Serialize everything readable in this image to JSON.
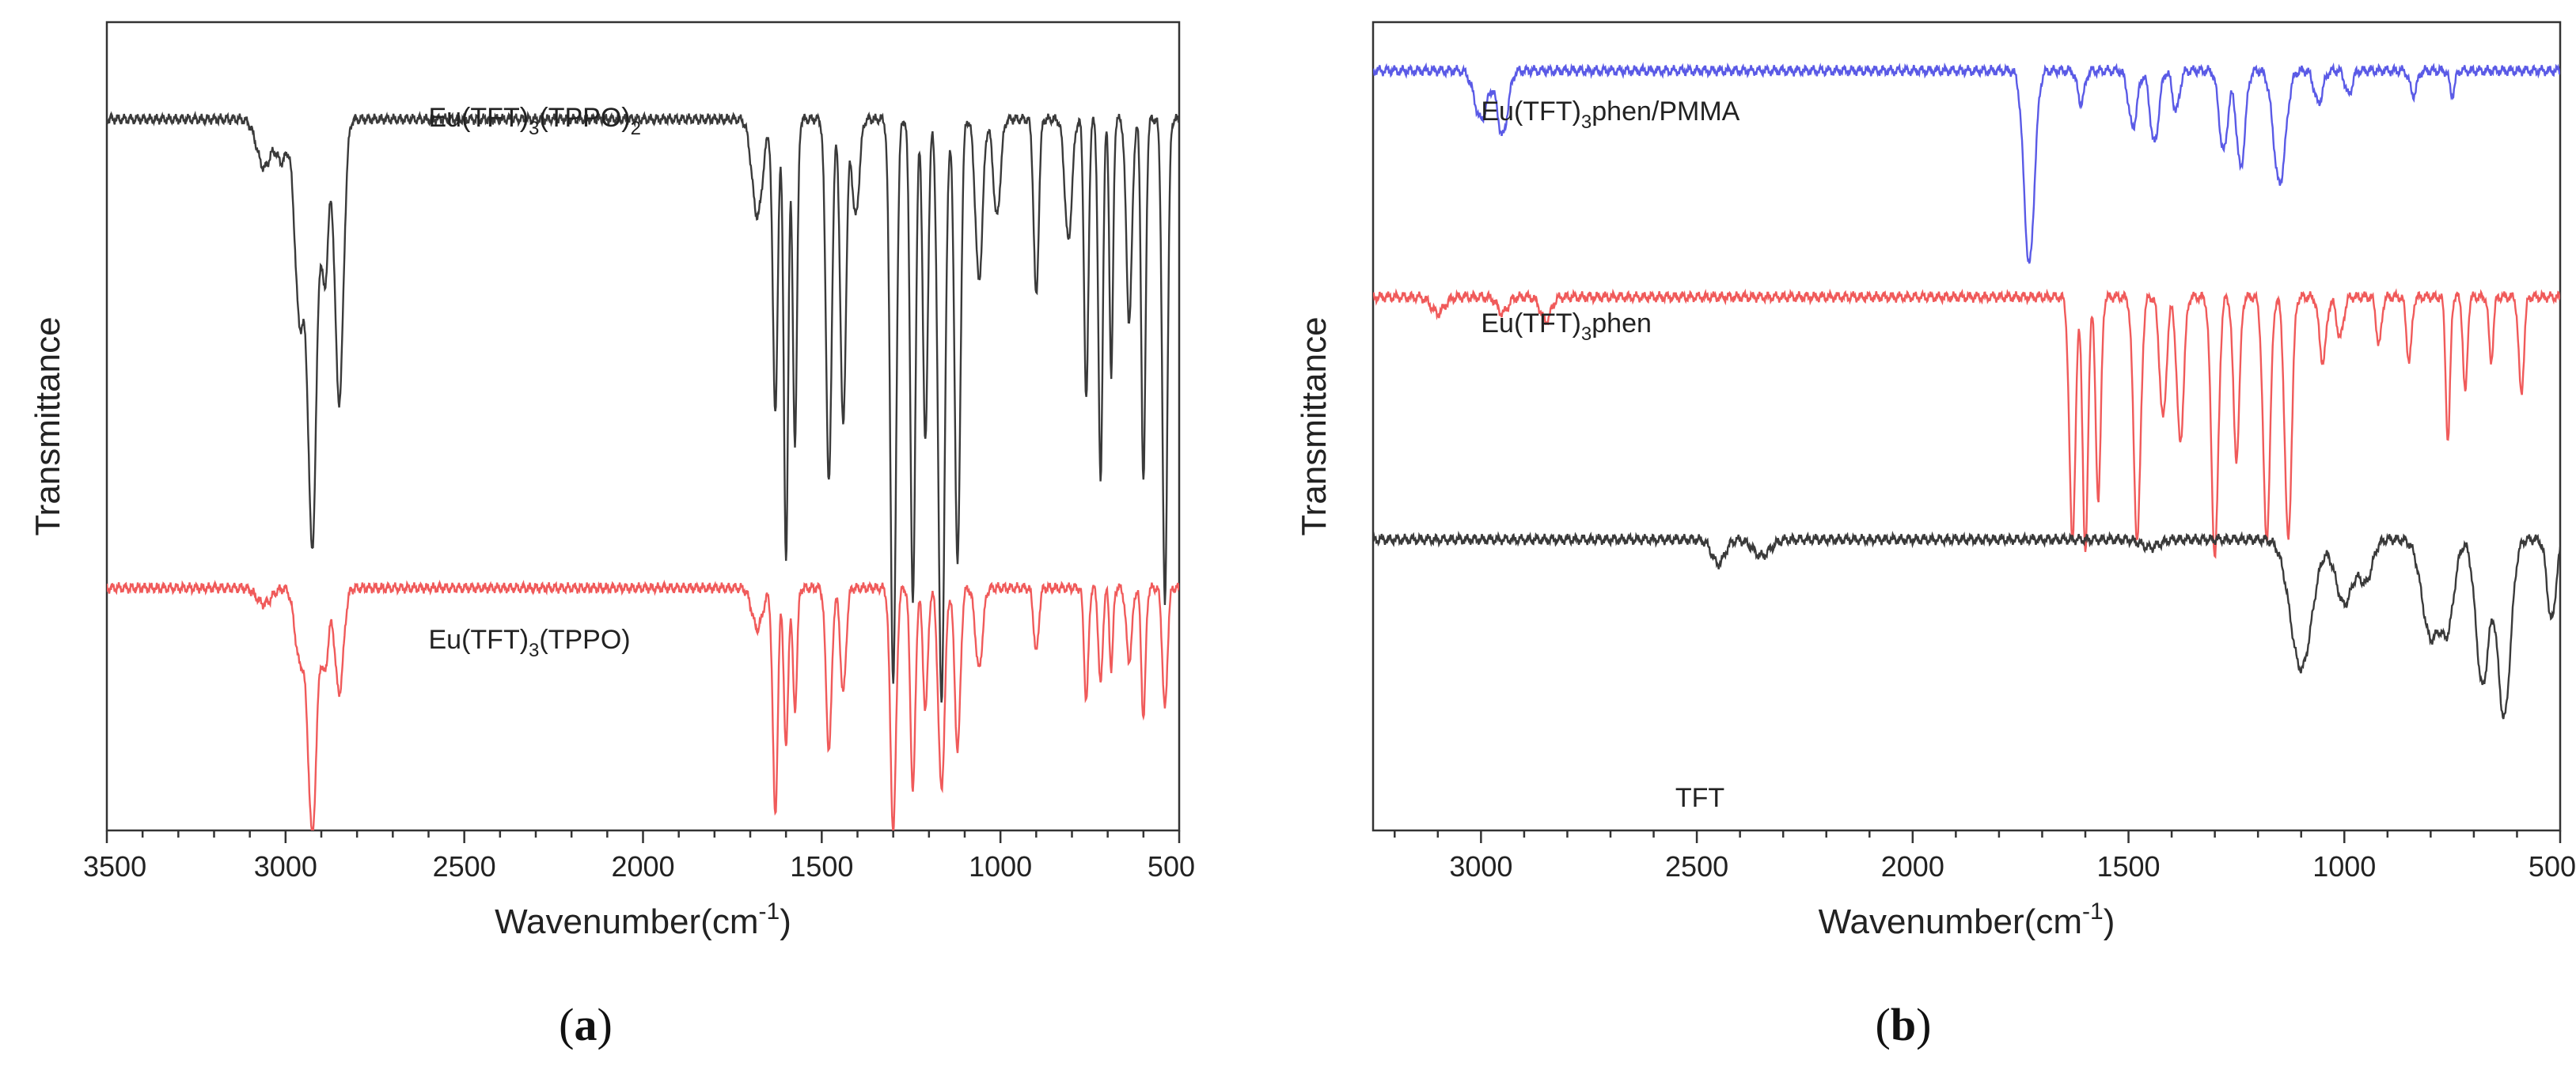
{
  "chart_data": [
    {
      "type": "line",
      "subfigure_label": "a",
      "xlabel": "Wavenumber",
      "xlabel_unit": "(cm",
      "xlabel_sup": "-1",
      "xlabel_close": ")",
      "ylabel": "Transmittance",
      "xlim": [
        3500,
        500
      ],
      "ylim": [
        0,
        1
      ],
      "x_reversed": true,
      "y_tick_labels": false,
      "xticks": [
        3500,
        3000,
        2500,
        2000,
        1500,
        1000,
        500
      ],
      "xtick_labels": [
        "3500",
        "3000",
        "2500",
        "2000",
        "1500",
        "1000",
        "500"
      ],
      "grid": false,
      "series": [
        {
          "name_base": "Eu(TFT)",
          "name_sub1": "3",
          "name_mid": "(TPPO)",
          "name_sub2": "2",
          "color": "#3a3a3a",
          "baseline": 0.88,
          "peaks": [
            [
              3060,
              0.06,
              20
            ],
            [
              3010,
              0.05,
              15
            ],
            [
              2960,
              0.25,
              14
            ],
            [
              2925,
              0.52,
              12
            ],
            [
              2890,
              0.2,
              10
            ],
            [
              2850,
              0.35,
              12
            ],
            [
              1680,
              0.12,
              15
            ],
            [
              1630,
              0.36,
              7
            ],
            [
              1600,
              0.55,
              6
            ],
            [
              1575,
              0.4,
              6
            ],
            [
              1480,
              0.45,
              8
            ],
            [
              1440,
              0.38,
              8
            ],
            [
              1405,
              0.12,
              10
            ],
            [
              1300,
              0.7,
              8
            ],
            [
              1245,
              0.6,
              7
            ],
            [
              1210,
              0.4,
              7
            ],
            [
              1165,
              0.72,
              9
            ],
            [
              1120,
              0.55,
              8
            ],
            [
              1060,
              0.2,
              10
            ],
            [
              1010,
              0.12,
              10
            ],
            [
              900,
              0.22,
              7
            ],
            [
              810,
              0.15,
              10
            ],
            [
              760,
              0.35,
              6
            ],
            [
              720,
              0.45,
              6
            ],
            [
              690,
              0.32,
              5
            ],
            [
              640,
              0.25,
              8
            ],
            [
              600,
              0.45,
              6
            ],
            [
              540,
              0.6,
              7
            ]
          ]
        },
        {
          "name_base": "Eu(TFT)",
          "name_sub1": "3",
          "name_mid": "(TPPO)",
          "name_sub2": "",
          "color": "#f05a5a",
          "baseline": 0.3,
          "peaks": [
            [
              3060,
              0.02,
              20
            ],
            [
              2960,
              0.09,
              14
            ],
            [
              2925,
              0.3,
              12
            ],
            [
              2890,
              0.1,
              10
            ],
            [
              2850,
              0.13,
              12
            ],
            [
              1680,
              0.05,
              15
            ],
            [
              1630,
              0.28,
              7
            ],
            [
              1600,
              0.2,
              6
            ],
            [
              1575,
              0.15,
              6
            ],
            [
              1480,
              0.2,
              8
            ],
            [
              1440,
              0.13,
              8
            ],
            [
              1300,
              0.3,
              8
            ],
            [
              1245,
              0.25,
              7
            ],
            [
              1210,
              0.15,
              7
            ],
            [
              1165,
              0.25,
              9
            ],
            [
              1120,
              0.2,
              8
            ],
            [
              1060,
              0.1,
              10
            ],
            [
              900,
              0.08,
              7
            ],
            [
              760,
              0.14,
              6
            ],
            [
              720,
              0.12,
              6
            ],
            [
              690,
              0.1,
              5
            ],
            [
              640,
              0.09,
              8
            ],
            [
              600,
              0.16,
              6
            ],
            [
              540,
              0.15,
              7
            ]
          ]
        }
      ]
    },
    {
      "type": "line",
      "subfigure_label": "b",
      "xlabel": "Wavenumber",
      "xlabel_unit": "(cm",
      "xlabel_sup": "-1",
      "xlabel_close": ")",
      "ylabel": "Transmittance",
      "xlim": [
        3250,
        500
      ],
      "ylim": [
        0,
        1
      ],
      "x_reversed": true,
      "y_tick_labels": false,
      "xticks": [
        3000,
        2500,
        2000,
        1500,
        1000,
        500
      ],
      "xtick_labels": [
        "3000",
        "2500",
        "2000",
        "1500",
        "1000",
        "500"
      ],
      "grid": false,
      "series": [
        {
          "name_base": "Eu(TFT)",
          "name_sub1": "3",
          "name_mid": "phen/PMMA",
          "name_sub2": "",
          "color": "#5a5ae6",
          "baseline": 0.94,
          "peaks": [
            [
              3000,
              0.06,
              15
            ],
            [
              2950,
              0.08,
              12
            ],
            [
              1730,
              0.24,
              12
            ],
            [
              1610,
              0.04,
              8
            ],
            [
              1490,
              0.07,
              10
            ],
            [
              1440,
              0.09,
              10
            ],
            [
              1390,
              0.05,
              8
            ],
            [
              1280,
              0.1,
              10
            ],
            [
              1240,
              0.12,
              10
            ],
            [
              1150,
              0.14,
              14
            ],
            [
              1060,
              0.04,
              10
            ],
            [
              990,
              0.03,
              8
            ],
            [
              840,
              0.03,
              8
            ],
            [
              750,
              0.03,
              6
            ]
          ]
        },
        {
          "name_base": "Eu(TFT)",
          "name_sub1": "3",
          "name_mid": "phen",
          "name_sub2": "",
          "color": "#f05a5a",
          "baseline": 0.66,
          "peaks": [
            [
              3100,
              0.02,
              15
            ],
            [
              2950,
              0.02,
              12
            ],
            [
              2850,
              0.03,
              12
            ],
            [
              1630,
              0.3,
              7
            ],
            [
              1600,
              0.32,
              6
            ],
            [
              1570,
              0.25,
              6
            ],
            [
              1480,
              0.3,
              8
            ],
            [
              1420,
              0.15,
              8
            ],
            [
              1380,
              0.18,
              8
            ],
            [
              1300,
              0.32,
              8
            ],
            [
              1250,
              0.2,
              7
            ],
            [
              1180,
              0.3,
              8
            ],
            [
              1130,
              0.3,
              8
            ],
            [
              1050,
              0.08,
              8
            ],
            [
              1010,
              0.05,
              8
            ],
            [
              920,
              0.06,
              6
            ],
            [
              850,
              0.08,
              6
            ],
            [
              760,
              0.18,
              5
            ],
            [
              720,
              0.12,
              5
            ],
            [
              660,
              0.08,
              5
            ],
            [
              590,
              0.12,
              6
            ]
          ]
        },
        {
          "name_base": "TFT",
          "name_sub1": "",
          "name_mid": "",
          "name_sub2": "",
          "color": "#3a3a3a",
          "baseline": 0.36,
          "peaks": [
            [
              2450,
              0.03,
              15
            ],
            [
              2350,
              0.02,
              20
            ],
            [
              1450,
              0.01,
              20
            ],
            [
              1100,
              0.16,
              25
            ],
            [
              1000,
              0.08,
              20
            ],
            [
              950,
              0.05,
              15
            ],
            [
              800,
              0.12,
              20
            ],
            [
              760,
              0.1,
              15
            ],
            [
              680,
              0.18,
              15
            ],
            [
              630,
              0.22,
              15
            ],
            [
              520,
              0.1,
              10
            ]
          ]
        }
      ]
    }
  ]
}
